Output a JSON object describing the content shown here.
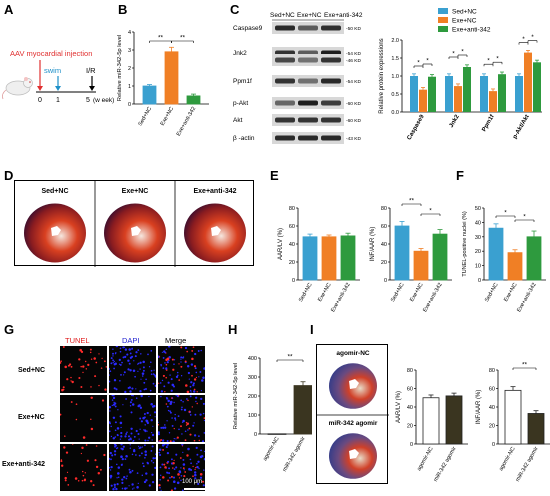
{
  "labels": {
    "A": "A",
    "B": "B",
    "C": "C",
    "D": "D",
    "E": "E",
    "F": "F",
    "G": "G",
    "H": "H",
    "I": "I"
  },
  "colors": {
    "sed": "#3aa0d0",
    "exe": "#f07f25",
    "anti": "#2e9a3e",
    "dark": "#3a3520",
    "tunel": "#ff2a2a",
    "dapi": "#2a2aff"
  },
  "panelA": {
    "injection": "AAV myocardial injection",
    "swim": "swim",
    "ir": "I/R",
    "ticks": [
      "0",
      "1",
      "5"
    ],
    "unit": "(w eek)"
  },
  "panelB": {
    "chart_data": {
      "type": "bar",
      "categories": [
        "Sed+NC",
        "Exe+NC",
        "Exe+anti-342"
      ],
      "values": [
        1.0,
        2.9,
        0.45
      ],
      "errors": [
        0.08,
        0.25,
        0.1
      ],
      "ylabel": "Relative miR-342-5p level",
      "ylim": [
        0,
        4
      ],
      "yticks": [
        "0",
        "1",
        "2",
        "3",
        "4"
      ],
      "sig": [
        "**",
        "**"
      ]
    }
  },
  "panelC": {
    "groups": [
      "Sed+NC",
      "Exe+NC",
      "Exe+anti-342"
    ],
    "blots": [
      {
        "name": "Caspase9",
        "kd": "50 KD"
      },
      {
        "name": "Jnk2",
        "kd": "54 KD"
      },
      {
        "name": "",
        "kd": "46 KD"
      },
      {
        "name": "Ppm1f",
        "kd": "54 KD"
      },
      {
        "name": "p-Akt",
        "kd": "60 KD"
      },
      {
        "name": "Akt",
        "kd": "60 KD"
      },
      {
        "name": "β -actin",
        "kd": "43 KD"
      }
    ],
    "legend": [
      "Sed+NC",
      "Exe+NC",
      "Exe+anti-342"
    ],
    "chart_data": {
      "type": "bar",
      "categories": [
        "Caspase9",
        "Jnk2",
        "Ppm1f",
        "p-Akt/Akt"
      ],
      "series": [
        {
          "name": "Sed+NC",
          "values": [
            1.0,
            1.0,
            1.0,
            1.0
          ]
        },
        {
          "name": "Exe+NC",
          "values": [
            0.62,
            0.72,
            0.58,
            1.65
          ]
        },
        {
          "name": "Exe+anti-342",
          "values": [
            0.98,
            1.25,
            1.05,
            1.38
          ]
        }
      ],
      "ylabel": "Relative protein expressions",
      "ylim": [
        0,
        2.0
      ],
      "yticks": [
        "0.0",
        "0.5",
        "1.0",
        "1.5",
        "2.0"
      ],
      "sig": "*"
    }
  },
  "panelD": {
    "hearts": [
      "Sed+NC",
      "Exe+NC",
      "Exe+anti-342"
    ]
  },
  "panelE": {
    "chart_data": [
      {
        "type": "bar",
        "categories": [
          "Sed+NC",
          "Exe+NC",
          "Exe+anti-342"
        ],
        "values": [
          48,
          48,
          49
        ],
        "errors": [
          3,
          2,
          3
        ],
        "ylabel": "AAR/LV (%)",
        "ylim": [
          0,
          80
        ],
        "yticks": [
          "0",
          "20",
          "40",
          "60",
          "80"
        ],
        "sig": []
      },
      {
        "type": "bar",
        "categories": [
          "Sed+NC",
          "Exe+NC",
          "Exe+anti-342"
        ],
        "values": [
          60,
          32,
          51
        ],
        "errors": [
          5,
          3,
          5
        ],
        "ylabel": "INF/AAR (%)",
        "ylim": [
          0,
          80
        ],
        "yticks": [
          "0",
          "20",
          "40",
          "60",
          "80"
        ],
        "sig": [
          "**",
          "*"
        ]
      }
    ]
  },
  "panelF": {
    "chart_data": {
      "type": "bar",
      "categories": [
        "Sed+NC",
        "Exe+NC",
        "Exe+anti-342"
      ],
      "values": [
        36,
        19,
        30
      ],
      "errors": [
        3,
        2,
        4
      ],
      "ylabel": "TUNEL-positive nuclei (%)",
      "ylim": [
        0,
        50
      ],
      "yticks": [
        "0",
        "10",
        "20",
        "30",
        "40",
        "50"
      ],
      "sig": [
        "*",
        "*"
      ]
    }
  },
  "panelG": {
    "columns": [
      "TUNEL",
      "DAPI",
      "Merge"
    ],
    "rows": [
      "Sed+NC",
      "Exe+NC",
      "Exe+anti-342"
    ],
    "scale": "100 μm"
  },
  "panelH": {
    "chart_data": {
      "type": "bar",
      "categories": [
        "agomir-NC",
        "miR-342 agomir"
      ],
      "values": [
        1,
        255
      ],
      "errors": [
        0,
        20
      ],
      "ylabel": "Relative miR-342-5p level",
      "ylim": [
        0,
        400
      ],
      "yticks": [
        "0",
        "100",
        "200",
        "300",
        "400"
      ],
      "sig": [
        "**"
      ]
    }
  },
  "panelI": {
    "hearts": [
      "agomir-NC",
      "miR-342 agomir"
    ],
    "chart_data": [
      {
        "type": "bar",
        "categories": [
          "agomir-NC",
          "miR-342 agomir"
        ],
        "values": [
          50,
          52
        ],
        "errors": [
          3,
          3
        ],
        "ylabel": "AAR/LV (%)",
        "ylim": [
          0,
          80
        ],
        "yticks": [
          "0",
          "20",
          "40",
          "60",
          "80"
        ],
        "sig": []
      },
      {
        "type": "bar",
        "categories": [
          "agomir-NC",
          "miR-342 agomir"
        ],
        "values": [
          58,
          33
        ],
        "errors": [
          4,
          3
        ],
        "ylabel": "INF/AAR (%)",
        "ylim": [
          0,
          80
        ],
        "yticks": [
          "0",
          "20",
          "40",
          "60",
          "80"
        ],
        "sig": [
          "**"
        ]
      }
    ]
  }
}
